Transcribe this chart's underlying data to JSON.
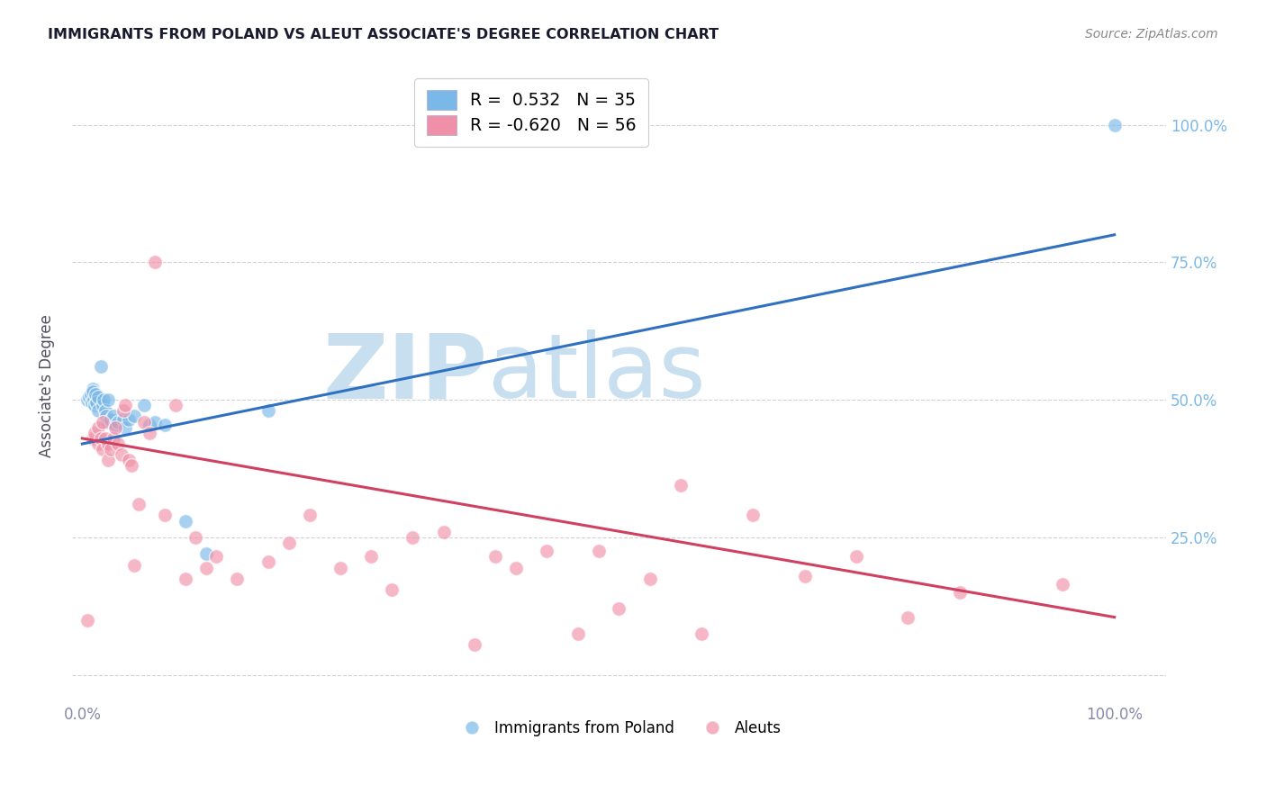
{
  "title": "IMMIGRANTS FROM POLAND VS ALEUT ASSOCIATE'S DEGREE CORRELATION CHART",
  "source": "Source: ZipAtlas.com",
  "ylabel": "Associate's Degree",
  "watermark_zip": "ZIP",
  "watermark_atlas": "atlas",
  "legend_items": [
    {
      "label": "Immigrants from Poland",
      "R": 0.532,
      "N": 35
    },
    {
      "label": "Aleuts",
      "R": -0.62,
      "N": 56
    }
  ],
  "blue_scatter_x": [
    0.005,
    0.007,
    0.008,
    0.009,
    0.01,
    0.01,
    0.011,
    0.012,
    0.013,
    0.014,
    0.015,
    0.015,
    0.018,
    0.02,
    0.021,
    0.022,
    0.023,
    0.025,
    0.025,
    0.028,
    0.03,
    0.032,
    0.035,
    0.04,
    0.042,
    0.045,
    0.05,
    0.06,
    0.065,
    0.07,
    0.08,
    0.1,
    0.12,
    0.18,
    1.0
  ],
  "blue_scatter_y": [
    0.5,
    0.505,
    0.51,
    0.495,
    0.52,
    0.515,
    0.5,
    0.49,
    0.51,
    0.495,
    0.505,
    0.48,
    0.56,
    0.49,
    0.5,
    0.48,
    0.47,
    0.5,
    0.46,
    0.465,
    0.47,
    0.455,
    0.46,
    0.465,
    0.45,
    0.465,
    0.47,
    0.49,
    0.455,
    0.46,
    0.455,
    0.28,
    0.22,
    0.48,
    1.0
  ],
  "pink_scatter_x": [
    0.005,
    0.01,
    0.012,
    0.015,
    0.015,
    0.018,
    0.02,
    0.02,
    0.022,
    0.025,
    0.025,
    0.028,
    0.03,
    0.032,
    0.035,
    0.038,
    0.04,
    0.042,
    0.045,
    0.048,
    0.05,
    0.055,
    0.06,
    0.065,
    0.07,
    0.08,
    0.09,
    0.1,
    0.11,
    0.12,
    0.13,
    0.15,
    0.18,
    0.2,
    0.22,
    0.25,
    0.28,
    0.3,
    0.32,
    0.35,
    0.38,
    0.4,
    0.42,
    0.45,
    0.48,
    0.5,
    0.52,
    0.55,
    0.58,
    0.6,
    0.65,
    0.7,
    0.75,
    0.8,
    0.85,
    0.95
  ],
  "pink_scatter_y": [
    0.1,
    0.43,
    0.44,
    0.42,
    0.45,
    0.43,
    0.41,
    0.46,
    0.43,
    0.42,
    0.39,
    0.41,
    0.43,
    0.45,
    0.42,
    0.4,
    0.48,
    0.49,
    0.39,
    0.38,
    0.2,
    0.31,
    0.46,
    0.44,
    0.75,
    0.29,
    0.49,
    0.175,
    0.25,
    0.195,
    0.215,
    0.175,
    0.205,
    0.24,
    0.29,
    0.195,
    0.215,
    0.155,
    0.25,
    0.26,
    0.055,
    0.215,
    0.195,
    0.225,
    0.075,
    0.225,
    0.12,
    0.175,
    0.345,
    0.075,
    0.29,
    0.18,
    0.215,
    0.105,
    0.15,
    0.165
  ],
  "blue_line_x": [
    0.0,
    1.0
  ],
  "blue_line_y": [
    0.42,
    0.8
  ],
  "pink_line_x": [
    0.0,
    1.0
  ],
  "pink_line_y": [
    0.43,
    0.105
  ],
  "yticks": [
    0.0,
    0.25,
    0.5,
    0.75,
    1.0
  ],
  "ytick_labels_right": [
    "",
    "25.0%",
    "50.0%",
    "75.0%",
    "100.0%"
  ],
  "xtick_positions": [
    0.0,
    0.25,
    0.5,
    0.75,
    1.0
  ],
  "xtick_labels": [
    "0.0%",
    "",
    "",
    "",
    "100.0%"
  ],
  "xlim": [
    -0.01,
    1.05
  ],
  "ylim": [
    -0.05,
    1.1
  ],
  "blue_dot_color": "#7ab8e8",
  "pink_dot_color": "#f090a8",
  "blue_line_color": "#3070c0",
  "pink_line_color": "#d04060",
  "grid_color": "#d0d0d8",
  "tick_label_color": "#8888aa",
  "right_tick_color": "#7ab8e8",
  "title_color": "#1a1a2e",
  "source_color": "#888888",
  "watermark_color": "#c8dff0"
}
